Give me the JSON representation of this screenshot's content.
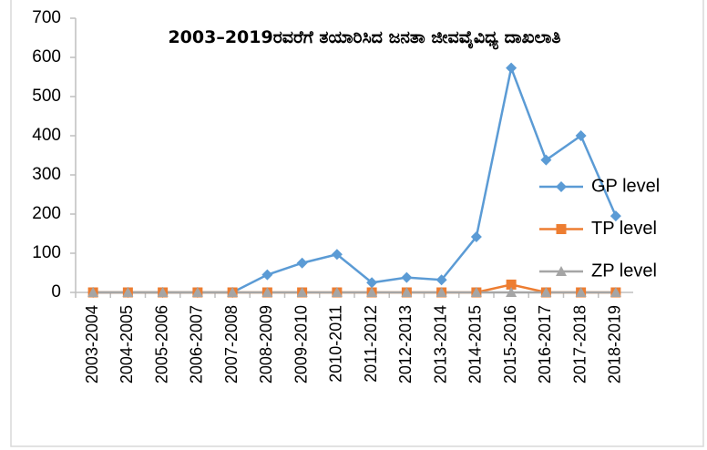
{
  "chart_data": {
    "type": "line",
    "title": "2003–2019ರವರೆಗೆ ತಯಾರಿಸಿದ ಜನತಾ ಜೀವವೈವಿಧ್ಯ ದಾಖಲಾತಿ",
    "categories": [
      "2003-2004",
      "2004-2005",
      "2005-2006",
      "2006-2007",
      "2007-2008",
      "2008-2009",
      "2009-2010",
      "2010-2011",
      "2011-2012",
      "2012-2013",
      "2013-2014",
      "2014-2015",
      "2015-2016",
      "2016-2017",
      "2017-2018",
      "2018-2019"
    ],
    "series": [
      {
        "name": "GP level",
        "color": "#5b9bd5",
        "marker": "diamond",
        "values": [
          0,
          0,
          0,
          0,
          0,
          45,
          75,
          97,
          25,
          38,
          32,
          142,
          573,
          338,
          400,
          195
        ]
      },
      {
        "name": "TP level",
        "color": "#ed7d31",
        "marker": "square",
        "values": [
          0,
          0,
          0,
          0,
          0,
          0,
          0,
          0,
          0,
          0,
          0,
          0,
          20,
          0,
          0,
          0
        ]
      },
      {
        "name": "ZP level",
        "color": "#a5a5a5",
        "marker": "triangle",
        "values": [
          0,
          0,
          0,
          0,
          0,
          0,
          0,
          0,
          0,
          0,
          0,
          0,
          0,
          0,
          0,
          0
        ]
      }
    ],
    "ylim": [
      0,
      700
    ],
    "yticks": [
      0,
      100,
      200,
      300,
      400,
      500,
      600,
      700
    ],
    "grid": false,
    "legend": "right"
  }
}
